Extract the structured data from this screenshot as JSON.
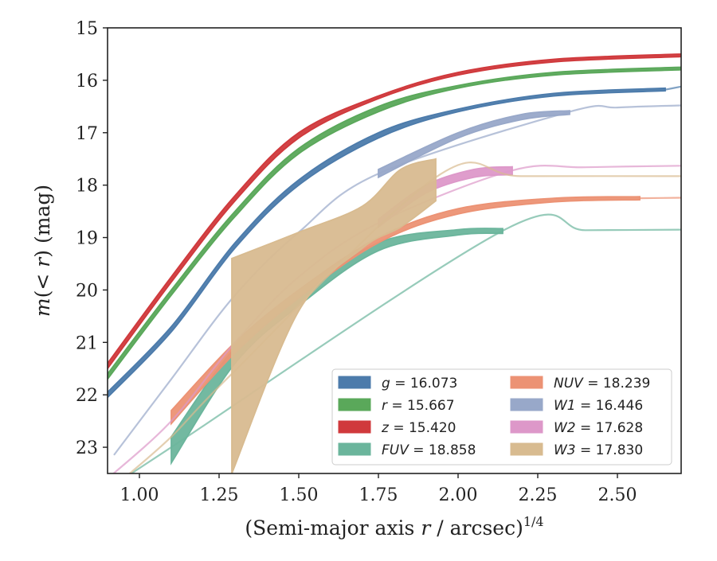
{
  "chart_data": {
    "type": "line",
    "xlabel": "(Semi-major axis r / arcsec)^1/4",
    "xlabel_parts": {
      "main": "(Semi-major axis ",
      "var": "r",
      "rest": " / arcsec)",
      "sup": "1/4"
    },
    "ylabel": "m(< r) (mag)",
    "ylabel_parts": {
      "var": "m",
      "open": "(< ",
      "var2": "r",
      "close": ") (mag)"
    },
    "xlim": [
      0.9,
      2.7
    ],
    "ylim": [
      23.5,
      15.0
    ],
    "y_inverted": true,
    "grid": false,
    "legend_position": "lower-right",
    "x_ticks": [
      "1.00",
      "1.25",
      "1.50",
      "1.75",
      "2.00",
      "2.25",
      "2.50"
    ],
    "x_tick_values": [
      1.0,
      1.25,
      1.5,
      1.75,
      2.0,
      2.25,
      2.5
    ],
    "y_ticks": [
      "15",
      "16",
      "17",
      "18",
      "19",
      "20",
      "21",
      "22",
      "23"
    ],
    "y_tick_values": [
      15,
      16,
      17,
      18,
      19,
      20,
      21,
      22,
      23
    ],
    "series": [
      {
        "name": "g = 16.073",
        "label_var": "g",
        "label_val": "16.073",
        "color": "#4c7bab",
        "band": [
          [
            0.9,
            22.05,
            21.95
          ],
          [
            1.1,
            20.8,
            20.7
          ],
          [
            1.3,
            19.2,
            19.1
          ],
          [
            1.5,
            18.0,
            17.9
          ],
          [
            1.75,
            17.1,
            17.0
          ],
          [
            2.0,
            16.6,
            16.55
          ],
          [
            2.3,
            16.3,
            16.25
          ],
          [
            2.65,
            16.2,
            16.15
          ]
        ],
        "line": [
          [
            2.65,
            16.18
          ],
          [
            2.7,
            16.12
          ]
        ]
      },
      {
        "name": "r = 15.667",
        "label_var": "r",
        "label_val": "15.667",
        "color": "#5aa85a",
        "band": [
          [
            0.9,
            21.7,
            21.6
          ],
          [
            1.1,
            20.1,
            20.0
          ],
          [
            1.3,
            18.6,
            18.5
          ],
          [
            1.5,
            17.4,
            17.3
          ],
          [
            1.75,
            16.6,
            16.5
          ],
          [
            2.0,
            16.15,
            16.1
          ],
          [
            2.3,
            15.9,
            15.85
          ],
          [
            2.7,
            15.8,
            15.75
          ]
        ],
        "line": []
      },
      {
        "name": "z = 15.420",
        "label_var": "z",
        "label_val": "15.420",
        "color": "#d0393c",
        "band": [
          [
            0.9,
            21.5,
            21.4
          ],
          [
            1.1,
            19.85,
            19.75
          ],
          [
            1.3,
            18.3,
            18.2
          ],
          [
            1.5,
            17.1,
            17.0
          ],
          [
            1.75,
            16.35,
            16.3
          ],
          [
            2.0,
            15.9,
            15.85
          ],
          [
            2.3,
            15.65,
            15.6
          ],
          [
            2.7,
            15.55,
            15.5
          ]
        ],
        "line": []
      },
      {
        "name": "FUV = 18.858",
        "label_var": "FUV",
        "label_val": "18.858",
        "color": "#6bb59c",
        "band": [
          [
            1.1,
            23.3,
            22.8
          ],
          [
            1.3,
            21.4,
            21.1
          ],
          [
            1.5,
            20.3,
            20.1
          ],
          [
            1.75,
            19.25,
            19.1
          ],
          [
            2.0,
            18.95,
            18.85
          ],
          [
            2.14,
            18.92,
            18.83
          ]
        ],
        "line": [
          [
            0.95,
            23.6
          ],
          [
            1.1,
            23.0
          ],
          [
            2.14,
            18.87
          ],
          [
            2.4,
            18.86
          ],
          [
            2.7,
            18.85
          ]
        ]
      },
      {
        "name": "NUV = 18.239",
        "label_var": "NUV",
        "label_val": "18.239",
        "color": "#ec9274",
        "band": [
          [
            1.1,
            22.55,
            22.3
          ],
          [
            1.3,
            21.2,
            21.0
          ],
          [
            1.5,
            20.15,
            20.0
          ],
          [
            1.75,
            19.1,
            19.0
          ],
          [
            2.0,
            18.55,
            18.45
          ],
          [
            2.3,
            18.32,
            18.25
          ],
          [
            2.57,
            18.28,
            18.22
          ]
        ],
        "line": [
          [
            2.57,
            18.25
          ],
          [
            2.7,
            18.24
          ]
        ]
      },
      {
        "name": "W1 = 16.446",
        "label_var": "W1",
        "label_val": "16.446",
        "color": "#98a8c9",
        "band": [
          [
            1.75,
            17.85,
            17.7
          ],
          [
            2.0,
            17.1,
            17.0
          ],
          [
            2.2,
            16.75,
            16.65
          ],
          [
            2.35,
            16.65,
            16.58
          ]
        ],
        "line": [
          [
            0.92,
            23.15
          ],
          [
            1.1,
            21.7
          ],
          [
            1.3,
            20.1
          ],
          [
            1.5,
            18.9
          ],
          [
            1.75,
            17.78
          ],
          [
            2.35,
            16.6
          ],
          [
            2.5,
            16.52
          ],
          [
            2.7,
            16.48
          ]
        ]
      },
      {
        "name": "W2 = 17.628",
        "label_var": "W2",
        "label_val": "17.628",
        "color": "#dd98c9",
        "band": [
          [
            1.75,
            18.8,
            18.65
          ],
          [
            1.9,
            18.15,
            18.0
          ],
          [
            2.05,
            17.85,
            17.7
          ],
          [
            2.17,
            17.8,
            17.65
          ]
        ],
        "line": [
          [
            0.9,
            23.6
          ],
          [
            1.1,
            22.5
          ],
          [
            1.3,
            21.0
          ],
          [
            1.5,
            19.75
          ],
          [
            1.75,
            18.72
          ],
          [
            2.17,
            17.72
          ],
          [
            2.4,
            17.66
          ],
          [
            2.7,
            17.63
          ]
        ]
      },
      {
        "name": "W3 = 17.830",
        "label_var": "W3",
        "label_val": "17.830",
        "color": "#d8bb90",
        "band": [
          [
            1.29,
            23.5,
            19.4
          ],
          [
            1.5,
            20.4,
            18.9
          ],
          [
            1.7,
            19.2,
            18.4
          ],
          [
            1.82,
            18.8,
            17.7
          ],
          [
            1.93,
            18.3,
            17.5
          ]
        ],
        "line": [
          [
            0.95,
            23.6
          ],
          [
            1.1,
            22.8
          ],
          [
            1.29,
            21.6
          ],
          [
            1.93,
            17.85
          ],
          [
            2.2,
            17.83
          ],
          [
            2.7,
            17.83
          ]
        ]
      }
    ]
  }
}
